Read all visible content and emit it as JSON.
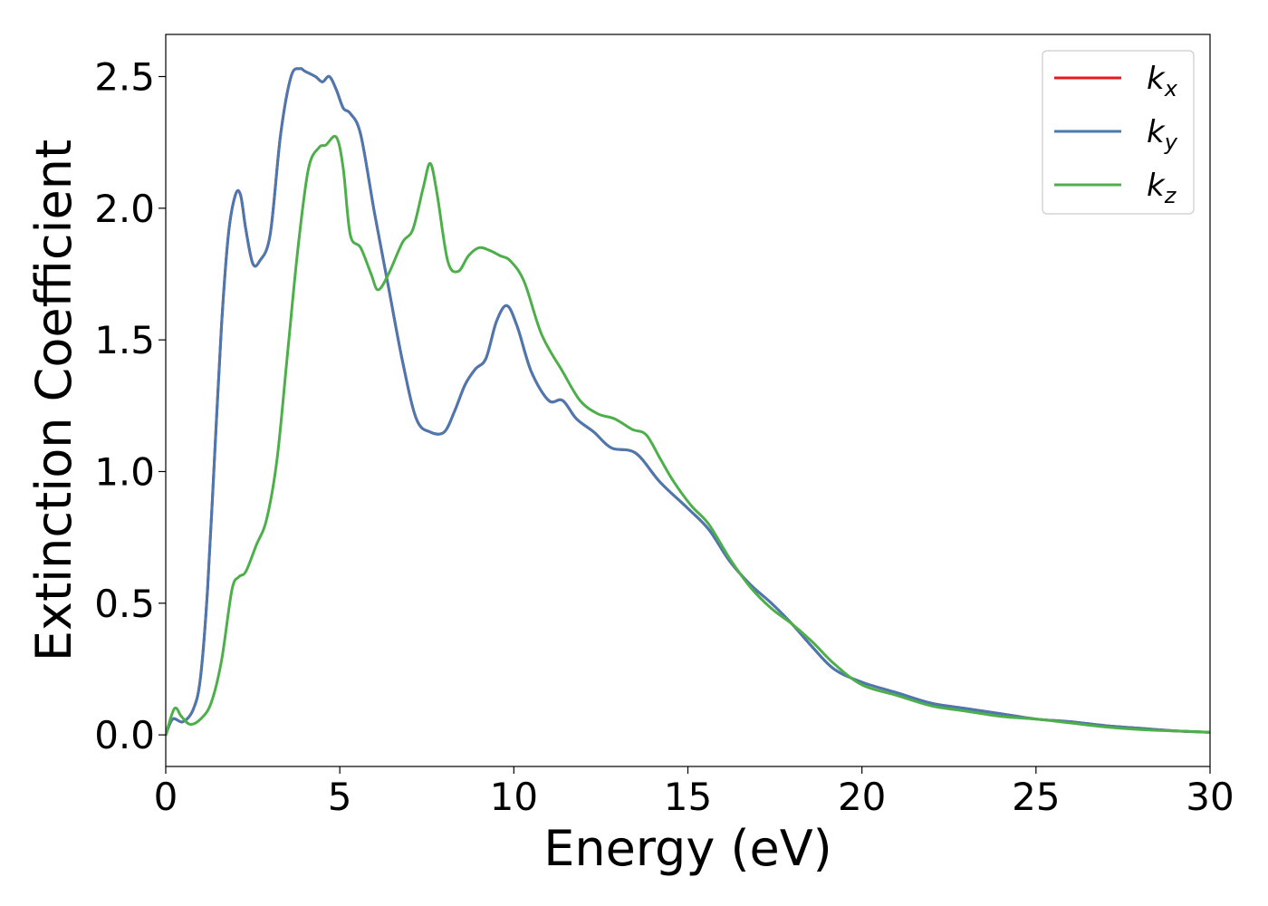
{
  "chart_data": {
    "type": "line",
    "title": "",
    "xlabel": "Energy (eV)",
    "ylabel": "Extinction Coefficient",
    "xlim": [
      0,
      30
    ],
    "ylim": [
      -0.12,
      2.66
    ],
    "xticks": [
      0,
      5,
      10,
      15,
      20,
      25,
      30
    ],
    "xtick_labels": [
      "0",
      "5",
      "10",
      "15",
      "20",
      "25",
      "30"
    ],
    "yticks": [
      0.0,
      0.5,
      1.0,
      1.5,
      2.0,
      2.5
    ],
    "ytick_labels": [
      "0.0",
      "0.5",
      "1.0",
      "1.5",
      "2.0",
      "2.5"
    ],
    "grid": false,
    "legend_position": "top-right",
    "series": [
      {
        "name": "k_x",
        "label_main": "k",
        "label_sub": "x",
        "color": "#e41a1c",
        "x": [
          0,
          0.2,
          0.5,
          0.8,
          1.0,
          1.2,
          1.4,
          1.6,
          1.8,
          2.0,
          2.15,
          2.3,
          2.5,
          2.7,
          3.0,
          3.3,
          3.6,
          3.85,
          4.0,
          4.3,
          4.5,
          4.7,
          4.9,
          5.1,
          5.3,
          5.6,
          6.0,
          6.4,
          6.8,
          7.2,
          7.6,
          8.0,
          8.3,
          8.6,
          8.9,
          9.2,
          9.5,
          9.8,
          10.1,
          10.5,
          11.0,
          11.4,
          11.8,
          12.3,
          12.8,
          13.5,
          14.2,
          15.0,
          15.6,
          16.2,
          16.8,
          17.4,
          18.0,
          18.6,
          19.2,
          20.0,
          21.0,
          22.0,
          23.0,
          24.0,
          25.0,
          26.0,
          27.0,
          28.0,
          29.0,
          30.0
        ],
        "y": [
          0.0,
          0.06,
          0.05,
          0.1,
          0.22,
          0.55,
          1.05,
          1.55,
          1.9,
          2.05,
          2.05,
          1.92,
          1.79,
          1.8,
          1.9,
          2.28,
          2.5,
          2.53,
          2.52,
          2.5,
          2.48,
          2.5,
          2.45,
          2.38,
          2.36,
          2.28,
          1.98,
          1.7,
          1.42,
          1.2,
          1.15,
          1.15,
          1.23,
          1.33,
          1.39,
          1.43,
          1.57,
          1.63,
          1.55,
          1.38,
          1.27,
          1.27,
          1.2,
          1.15,
          1.09,
          1.07,
          0.96,
          0.86,
          0.78,
          0.66,
          0.57,
          0.5,
          0.42,
          0.33,
          0.25,
          0.2,
          0.16,
          0.12,
          0.1,
          0.08,
          0.06,
          0.05,
          0.035,
          0.025,
          0.015,
          0.01
        ]
      },
      {
        "name": "k_y",
        "label_main": "k",
        "label_sub": "y",
        "color": "#4a78b0",
        "x": [
          0,
          0.2,
          0.5,
          0.8,
          1.0,
          1.2,
          1.4,
          1.6,
          1.8,
          2.0,
          2.15,
          2.3,
          2.5,
          2.7,
          3.0,
          3.3,
          3.6,
          3.85,
          4.0,
          4.3,
          4.5,
          4.7,
          4.9,
          5.1,
          5.3,
          5.6,
          6.0,
          6.4,
          6.8,
          7.2,
          7.6,
          8.0,
          8.3,
          8.6,
          8.9,
          9.2,
          9.5,
          9.8,
          10.1,
          10.5,
          11.0,
          11.4,
          11.8,
          12.3,
          12.8,
          13.5,
          14.2,
          15.0,
          15.6,
          16.2,
          16.8,
          17.4,
          18.0,
          18.6,
          19.2,
          20.0,
          21.0,
          22.0,
          23.0,
          24.0,
          25.0,
          26.0,
          27.0,
          28.0,
          29.0,
          30.0
        ],
        "y": [
          0.0,
          0.06,
          0.05,
          0.1,
          0.22,
          0.55,
          1.05,
          1.55,
          1.9,
          2.05,
          2.05,
          1.92,
          1.79,
          1.8,
          1.9,
          2.28,
          2.5,
          2.53,
          2.52,
          2.5,
          2.48,
          2.5,
          2.45,
          2.38,
          2.36,
          2.28,
          1.98,
          1.7,
          1.42,
          1.2,
          1.15,
          1.15,
          1.23,
          1.33,
          1.39,
          1.43,
          1.57,
          1.63,
          1.55,
          1.38,
          1.27,
          1.27,
          1.2,
          1.15,
          1.09,
          1.07,
          0.96,
          0.86,
          0.78,
          0.66,
          0.57,
          0.5,
          0.42,
          0.33,
          0.25,
          0.2,
          0.16,
          0.12,
          0.1,
          0.08,
          0.06,
          0.05,
          0.035,
          0.025,
          0.015,
          0.01
        ]
      },
      {
        "name": "k_z",
        "label_main": "k",
        "label_sub": "z",
        "color": "#4daf4a",
        "x": [
          0,
          0.25,
          0.45,
          0.7,
          1.0,
          1.3,
          1.6,
          1.9,
          2.1,
          2.3,
          2.6,
          2.9,
          3.2,
          3.5,
          3.8,
          4.1,
          4.4,
          4.6,
          4.9,
          5.1,
          5.3,
          5.6,
          5.9,
          6.1,
          6.4,
          6.8,
          7.1,
          7.4,
          7.6,
          7.8,
          8.1,
          8.4,
          8.7,
          9.0,
          9.3,
          9.6,
          9.9,
          10.3,
          10.8,
          11.4,
          11.9,
          12.4,
          12.9,
          13.4,
          13.8,
          14.2,
          14.6,
          15.1,
          15.6,
          16.2,
          16.8,
          17.4,
          18.0,
          18.6,
          19.2,
          20.0,
          21.0,
          22.0,
          23.0,
          24.0,
          25.0,
          26.0,
          27.0,
          28.0,
          29.0,
          30.0
        ],
        "y": [
          0.0,
          0.1,
          0.07,
          0.04,
          0.06,
          0.12,
          0.28,
          0.55,
          0.6,
          0.62,
          0.72,
          0.82,
          1.05,
          1.45,
          1.85,
          2.15,
          2.23,
          2.24,
          2.27,
          2.15,
          1.9,
          1.85,
          1.75,
          1.69,
          1.75,
          1.87,
          1.92,
          2.08,
          2.17,
          2.05,
          1.8,
          1.76,
          1.82,
          1.85,
          1.84,
          1.82,
          1.8,
          1.72,
          1.52,
          1.38,
          1.27,
          1.22,
          1.2,
          1.16,
          1.14,
          1.05,
          0.96,
          0.87,
          0.8,
          0.67,
          0.56,
          0.48,
          0.42,
          0.35,
          0.27,
          0.19,
          0.15,
          0.11,
          0.09,
          0.07,
          0.06,
          0.045,
          0.03,
          0.02,
          0.015,
          0.01
        ]
      }
    ]
  }
}
